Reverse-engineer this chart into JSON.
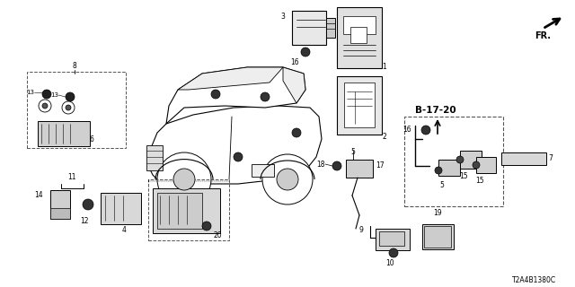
{
  "bg_color": "#ffffff",
  "part_code": "T2A4B1380C",
  "fr_text": "FR.",
  "b1720_text": "B-17-20",
  "fig_w": 6.4,
  "fig_h": 3.2,
  "dpi": 100
}
